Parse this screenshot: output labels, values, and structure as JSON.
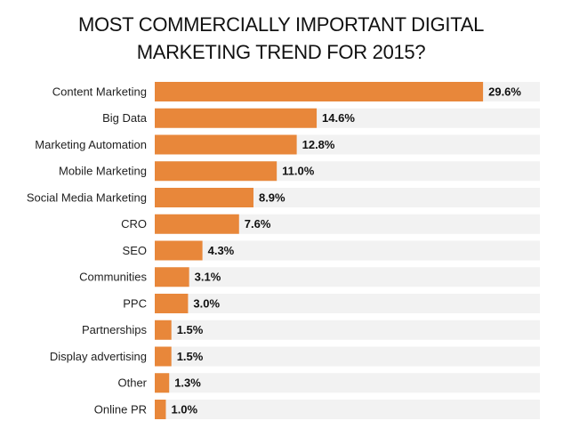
{
  "chart_data": {
    "type": "bar",
    "orientation": "horizontal",
    "title": "MOST COMMERCIALLY IMPORTANT DIGITAL MARKETING TREND FOR 2015?",
    "categories": [
      "Content Marketing",
      "Big Data",
      "Marketing Automation",
      "Mobile Marketing",
      "Social Media Marketing",
      "CRO",
      "SEO",
      "Communities",
      "PPC",
      "Partnerships",
      "Display advertising",
      "Other",
      "Online PR"
    ],
    "values": [
      29.6,
      14.6,
      12.8,
      11.0,
      8.9,
      7.6,
      4.3,
      3.1,
      3.0,
      1.5,
      1.5,
      1.3,
      1.0
    ],
    "value_labels": [
      "29.6%",
      "14.6%",
      "12.8%",
      "11.0%",
      "8.9%",
      "7.6%",
      "4.3%",
      "3.1%",
      "3.0%",
      "1.5%",
      "1.5%",
      "1.3%",
      "1.0%"
    ],
    "color": "#e8873a"
  }
}
